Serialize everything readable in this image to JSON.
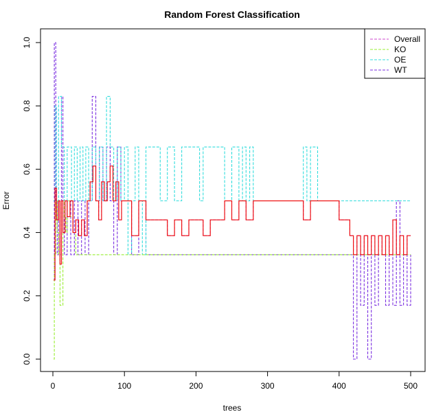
{
  "chart_data": {
    "type": "line",
    "title": "Random Forest Classification",
    "xlabel": "trees",
    "ylabel": "Error",
    "xlim": [
      0,
      500
    ],
    "ylim": [
      0,
      1
    ],
    "xticks": [
      0,
      100,
      200,
      300,
      400,
      500
    ],
    "yticks": [
      0.0,
      0.2,
      0.4,
      0.6,
      0.8,
      1.0
    ],
    "ytick_labels": [
      "0.0",
      "0.2",
      "0.4",
      "0.6",
      "0.8",
      "1.0"
    ],
    "grid": false,
    "legend_position": "top-right",
    "series": [
      {
        "name": "Overall",
        "color": "#cc44cc",
        "dash": "dashed",
        "x": [
          1,
          3,
          5,
          8,
          10,
          12,
          14,
          17,
          20,
          24,
          28,
          32,
          36,
          40,
          44,
          48,
          52,
          56,
          60,
          64,
          68,
          72,
          76,
          80,
          84,
          88,
          92,
          96,
          100,
          110,
          120,
          130,
          140,
          150,
          160,
          170,
          180,
          190,
          200,
          210,
          220,
          230,
          240,
          250,
          260,
          270,
          280,
          300,
          320,
          340,
          350,
          360,
          380,
          400,
          415,
          420,
          425,
          430,
          435,
          440,
          445,
          450,
          455,
          460,
          465,
          470,
          475,
          480,
          485,
          490,
          495,
          500
        ],
        "y": [
          0.25,
          0.54,
          0.44,
          0.5,
          0.3,
          0.5,
          0.4,
          0.5,
          0.45,
          0.5,
          0.4,
          0.44,
          0.39,
          0.44,
          0.39,
          0.5,
          0.56,
          0.61,
          0.5,
          0.44,
          0.56,
          0.5,
          0.56,
          0.61,
          0.5,
          0.56,
          0.44,
          0.5,
          0.5,
          0.39,
          0.5,
          0.44,
          0.44,
          0.44,
          0.39,
          0.44,
          0.39,
          0.44,
          0.44,
          0.39,
          0.44,
          0.44,
          0.5,
          0.44,
          0.5,
          0.44,
          0.5,
          0.5,
          0.5,
          0.5,
          0.44,
          0.5,
          0.5,
          0.44,
          0.39,
          0.33,
          0.39,
          0.33,
          0.39,
          0.33,
          0.39,
          0.33,
          0.39,
          0.33,
          0.39,
          0.33,
          0.44,
          0.33,
          0.39,
          0.33,
          0.39,
          0.39
        ]
      },
      {
        "name": "KO",
        "color": "#99ee33",
        "dash": "dashed",
        "x": [
          1,
          2,
          4,
          6,
          8,
          10,
          12,
          14,
          16,
          18,
          20,
          24,
          28,
          32,
          36,
          40,
          60,
          100,
          200,
          300,
          400,
          500
        ],
        "y": [
          0.0,
          0.33,
          0.5,
          0.4,
          0.33,
          0.17,
          0.17,
          0.5,
          0.45,
          0.4,
          0.5,
          0.45,
          0.4,
          0.33,
          0.33,
          0.33,
          0.33,
          0.33,
          0.33,
          0.33,
          0.33,
          0.33
        ]
      },
      {
        "name": "OE",
        "color": "#33dddd",
        "dash": "dashed",
        "x": [
          1,
          3,
          5,
          8,
          12,
          16,
          20,
          26,
          30,
          34,
          38,
          42,
          46,
          50,
          55,
          60,
          65,
          70,
          75,
          80,
          85,
          90,
          95,
          100,
          105,
          110,
          115,
          120,
          125,
          130,
          140,
          150,
          160,
          170,
          180,
          190,
          200,
          205,
          210,
          220,
          230,
          240,
          250,
          260,
          265,
          270,
          275,
          280,
          300,
          320,
          340,
          350,
          355,
          360,
          370,
          380,
          400,
          420,
          440,
          460,
          480,
          490,
          500
        ],
        "y": [
          0.5,
          0.8,
          0.5,
          0.83,
          0.67,
          0.5,
          0.67,
          0.5,
          0.67,
          0.5,
          0.67,
          0.5,
          0.67,
          0.5,
          0.67,
          0.5,
          0.67,
          0.5,
          0.83,
          0.67,
          0.5,
          0.67,
          0.5,
          0.67,
          0.33,
          0.5,
          0.67,
          0.5,
          0.33,
          0.67,
          0.67,
          0.5,
          0.67,
          0.5,
          0.67,
          0.67,
          0.67,
          0.5,
          0.67,
          0.67,
          0.67,
          0.5,
          0.67,
          0.5,
          0.67,
          0.5,
          0.67,
          0.5,
          0.5,
          0.5,
          0.5,
          0.67,
          0.5,
          0.67,
          0.5,
          0.5,
          0.5,
          0.5,
          0.5,
          0.5,
          0.5,
          0.5,
          0.5
        ]
      },
      {
        "name": "WT",
        "color": "#7a2ee0",
        "dash": "dashed",
        "x": [
          1,
          2,
          4,
          6,
          8,
          10,
          12,
          14,
          16,
          20,
          25,
          30,
          35,
          40,
          45,
          50,
          55,
          60,
          65,
          70,
          75,
          80,
          85,
          90,
          95,
          100,
          110,
          120,
          130,
          140,
          150,
          160,
          170,
          180,
          190,
          200,
          220,
          240,
          260,
          280,
          300,
          320,
          340,
          350,
          360,
          380,
          400,
          410,
          415,
          420,
          425,
          430,
          435,
          440,
          445,
          450,
          455,
          460,
          465,
          470,
          475,
          480,
          485,
          490,
          495,
          500
        ],
        "y": [
          0.25,
          1.0,
          0.5,
          0.33,
          0.5,
          0.33,
          0.83,
          0.5,
          0.33,
          0.5,
          0.33,
          0.5,
          0.33,
          0.5,
          0.33,
          0.5,
          0.83,
          0.5,
          0.67,
          0.5,
          0.67,
          0.5,
          0.33,
          0.67,
          0.5,
          0.5,
          0.33,
          0.5,
          0.33,
          0.33,
          0.33,
          0.33,
          0.33,
          0.33,
          0.33,
          0.33,
          0.33,
          0.33,
          0.33,
          0.33,
          0.33,
          0.33,
          0.33,
          0.33,
          0.33,
          0.33,
          0.33,
          0.33,
          0.33,
          0.0,
          0.33,
          0.17,
          0.33,
          0.0,
          0.33,
          0.17,
          0.33,
          0.33,
          0.17,
          0.33,
          0.17,
          0.5,
          0.17,
          0.33,
          0.17,
          0.33
        ]
      }
    ]
  }
}
